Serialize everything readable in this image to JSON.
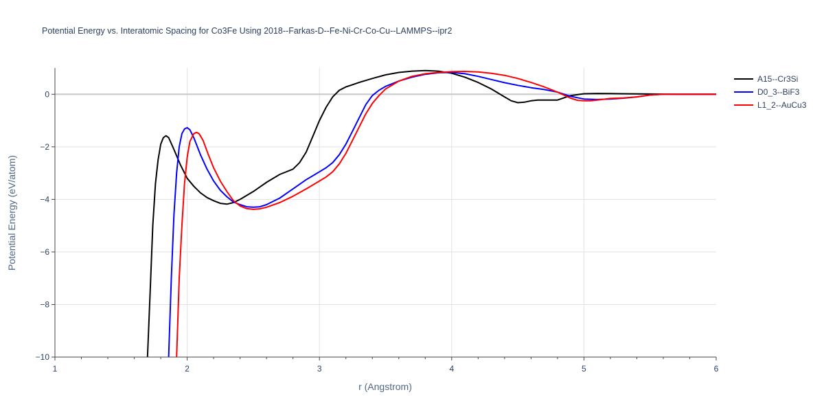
{
  "chart_data": {
    "type": "line",
    "title": "Potential Energy vs. Interatomic Spacing for Co3Fe Using 2018--Farkas-D--Fe-Ni-Cr-Co-Cu--LAMMPS--ipr2",
    "xlabel": "r (Angstrom)",
    "ylabel": "Potential Energy (eV/atom)",
    "xlim": [
      1,
      6
    ],
    "ylim": [
      -10,
      1
    ],
    "x_ticks": [
      "1",
      "2",
      "3",
      "4",
      "5",
      "6"
    ],
    "y_ticks": [
      "−10",
      "−8",
      "−6",
      "−4",
      "−2",
      "0"
    ],
    "grid": true,
    "legend_position": "top-right",
    "series": [
      {
        "name": "A15--Cr3Si",
        "color": "#000000",
        "points": [
          [
            1.7,
            -10.0
          ],
          [
            1.72,
            -7.5
          ],
          [
            1.74,
            -5.0
          ],
          [
            1.76,
            -3.4
          ],
          [
            1.78,
            -2.5
          ],
          [
            1.8,
            -1.9
          ],
          [
            1.82,
            -1.65
          ],
          [
            1.84,
            -1.58
          ],
          [
            1.86,
            -1.65
          ],
          [
            1.9,
            -2.1
          ],
          [
            1.95,
            -2.7
          ],
          [
            2.0,
            -3.2
          ],
          [
            2.05,
            -3.5
          ],
          [
            2.1,
            -3.75
          ],
          [
            2.15,
            -3.93
          ],
          [
            2.2,
            -4.05
          ],
          [
            2.25,
            -4.15
          ],
          [
            2.3,
            -4.18
          ],
          [
            2.35,
            -4.12
          ],
          [
            2.4,
            -4.0
          ],
          [
            2.5,
            -3.7
          ],
          [
            2.6,
            -3.35
          ],
          [
            2.7,
            -3.05
          ],
          [
            2.8,
            -2.85
          ],
          [
            2.85,
            -2.6
          ],
          [
            2.9,
            -2.2
          ],
          [
            2.95,
            -1.6
          ],
          [
            3.0,
            -1.0
          ],
          [
            3.05,
            -0.5
          ],
          [
            3.1,
            -0.1
          ],
          [
            3.15,
            0.15
          ],
          [
            3.2,
            0.28
          ],
          [
            3.3,
            0.45
          ],
          [
            3.4,
            0.6
          ],
          [
            3.5,
            0.74
          ],
          [
            3.6,
            0.83
          ],
          [
            3.7,
            0.88
          ],
          [
            3.8,
            0.9
          ],
          [
            3.9,
            0.88
          ],
          [
            4.0,
            0.8
          ],
          [
            4.1,
            0.65
          ],
          [
            4.2,
            0.45
          ],
          [
            4.3,
            0.2
          ],
          [
            4.4,
            -0.1
          ],
          [
            4.45,
            -0.25
          ],
          [
            4.5,
            -0.32
          ],
          [
            4.55,
            -0.3
          ],
          [
            4.6,
            -0.25
          ],
          [
            4.65,
            -0.22
          ],
          [
            4.7,
            -0.22
          ],
          [
            4.8,
            -0.22
          ],
          [
            4.9,
            -0.05
          ],
          [
            5.0,
            0.02
          ],
          [
            5.1,
            0.03
          ],
          [
            5.3,
            0.02
          ],
          [
            5.5,
            0.01
          ],
          [
            5.7,
            0.0
          ],
          [
            6.0,
            0.0
          ]
        ]
      },
      {
        "name": "D0_3--BiF3",
        "color": "#0000ff",
        "points": [
          [
            1.86,
            -10.0
          ],
          [
            1.88,
            -7.0
          ],
          [
            1.9,
            -4.6
          ],
          [
            1.92,
            -3.0
          ],
          [
            1.94,
            -2.0
          ],
          [
            1.96,
            -1.5
          ],
          [
            1.98,
            -1.32
          ],
          [
            2.0,
            -1.27
          ],
          [
            2.02,
            -1.35
          ],
          [
            2.05,
            -1.65
          ],
          [
            2.1,
            -2.3
          ],
          [
            2.15,
            -2.85
          ],
          [
            2.2,
            -3.3
          ],
          [
            2.25,
            -3.65
          ],
          [
            2.3,
            -3.9
          ],
          [
            2.35,
            -4.1
          ],
          [
            2.4,
            -4.2
          ],
          [
            2.45,
            -4.28
          ],
          [
            2.5,
            -4.3
          ],
          [
            2.55,
            -4.28
          ],
          [
            2.6,
            -4.2
          ],
          [
            2.7,
            -3.95
          ],
          [
            2.8,
            -3.6
          ],
          [
            2.9,
            -3.25
          ],
          [
            3.0,
            -2.95
          ],
          [
            3.05,
            -2.8
          ],
          [
            3.1,
            -2.6
          ],
          [
            3.15,
            -2.3
          ],
          [
            3.2,
            -1.9
          ],
          [
            3.25,
            -1.4
          ],
          [
            3.3,
            -0.9
          ],
          [
            3.35,
            -0.4
          ],
          [
            3.4,
            -0.05
          ],
          [
            3.45,
            0.15
          ],
          [
            3.5,
            0.3
          ],
          [
            3.6,
            0.5
          ],
          [
            3.7,
            0.65
          ],
          [
            3.8,
            0.76
          ],
          [
            3.9,
            0.82
          ],
          [
            4.0,
            0.83
          ],
          [
            4.1,
            0.78
          ],
          [
            4.2,
            0.68
          ],
          [
            4.3,
            0.56
          ],
          [
            4.4,
            0.44
          ],
          [
            4.5,
            0.34
          ],
          [
            4.6,
            0.25
          ],
          [
            4.7,
            0.18
          ],
          [
            4.8,
            0.08
          ],
          [
            4.9,
            -0.08
          ],
          [
            5.0,
            -0.18
          ],
          [
            5.1,
            -0.2
          ],
          [
            5.2,
            -0.18
          ],
          [
            5.3,
            -0.15
          ],
          [
            5.4,
            -0.1
          ],
          [
            5.5,
            -0.03
          ],
          [
            5.6,
            0.0
          ],
          [
            6.0,
            0.0
          ]
        ]
      },
      {
        "name": "L1_2--AuCu3",
        "color": "#ff0000",
        "points": [
          [
            1.92,
            -10.0
          ],
          [
            1.94,
            -7.0
          ],
          [
            1.96,
            -5.0
          ],
          [
            1.98,
            -3.4
          ],
          [
            2.0,
            -2.4
          ],
          [
            2.02,
            -1.8
          ],
          [
            2.05,
            -1.5
          ],
          [
            2.07,
            -1.45
          ],
          [
            2.09,
            -1.5
          ],
          [
            2.12,
            -1.75
          ],
          [
            2.16,
            -2.3
          ],
          [
            2.2,
            -2.8
          ],
          [
            2.25,
            -3.3
          ],
          [
            2.3,
            -3.7
          ],
          [
            2.35,
            -4.05
          ],
          [
            2.4,
            -4.25
          ],
          [
            2.45,
            -4.35
          ],
          [
            2.5,
            -4.38
          ],
          [
            2.55,
            -4.36
          ],
          [
            2.6,
            -4.3
          ],
          [
            2.7,
            -4.12
          ],
          [
            2.8,
            -3.88
          ],
          [
            2.9,
            -3.6
          ],
          [
            3.0,
            -3.3
          ],
          [
            3.05,
            -3.15
          ],
          [
            3.1,
            -2.95
          ],
          [
            3.15,
            -2.65
          ],
          [
            3.2,
            -2.25
          ],
          [
            3.25,
            -1.75
          ],
          [
            3.3,
            -1.25
          ],
          [
            3.35,
            -0.75
          ],
          [
            3.4,
            -0.35
          ],
          [
            3.45,
            -0.05
          ],
          [
            3.5,
            0.2
          ],
          [
            3.6,
            0.5
          ],
          [
            3.7,
            0.68
          ],
          [
            3.8,
            0.78
          ],
          [
            3.9,
            0.83
          ],
          [
            4.0,
            0.86
          ],
          [
            4.1,
            0.87
          ],
          [
            4.2,
            0.85
          ],
          [
            4.3,
            0.8
          ],
          [
            4.4,
            0.72
          ],
          [
            4.5,
            0.6
          ],
          [
            4.6,
            0.45
          ],
          [
            4.7,
            0.28
          ],
          [
            4.8,
            0.08
          ],
          [
            4.9,
            -0.15
          ],
          [
            4.95,
            -0.23
          ],
          [
            5.0,
            -0.25
          ],
          [
            5.05,
            -0.25
          ],
          [
            5.1,
            -0.22
          ],
          [
            5.2,
            -0.16
          ],
          [
            5.3,
            -0.14
          ],
          [
            5.4,
            -0.1
          ],
          [
            5.5,
            -0.03
          ],
          [
            5.6,
            0.0
          ],
          [
            6.0,
            0.0
          ]
        ]
      }
    ]
  }
}
